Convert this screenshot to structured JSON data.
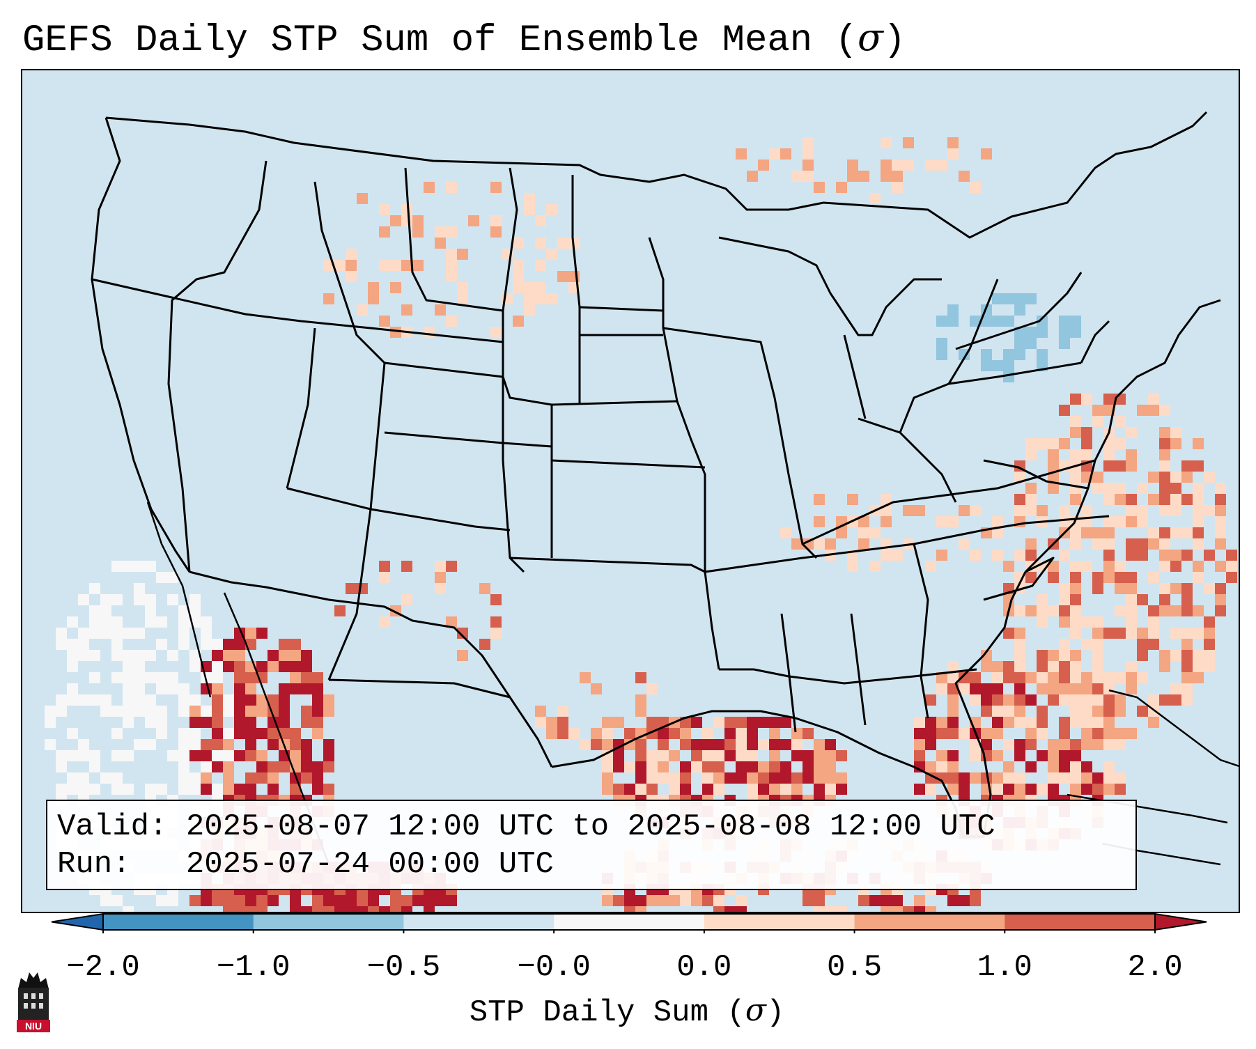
{
  "title": {
    "prefix": "GEFS Daily STP Sum of Ensemble Mean (",
    "symbol": "σ",
    "suffix": ")"
  },
  "info": {
    "valid_label": "Valid:",
    "valid_value": "2025-08-07 12:00 UTC to 2025-08-08 12:00 UTC",
    "run_label": "Run:",
    "run_value": "2025-07-24 00:00 UTC"
  },
  "colorbar": {
    "ticks": [
      "−2.0",
      "−1.0",
      "−0.5",
      "−0.0",
      "0.0",
      "0.5",
      "1.0",
      "2.0"
    ],
    "bins": [
      {
        "range": "< -2.0",
        "color": "#2166ac"
      },
      {
        "range": "-2.0 to -1.0",
        "color": "#4393c3"
      },
      {
        "range": "-1.0 to -0.5",
        "color": "#92c5de"
      },
      {
        "range": "-0.5 to -0.0",
        "color": "#d1e5f0"
      },
      {
        "range": "-0.0 to 0.0",
        "color": "#f7f7f7"
      },
      {
        "range": "0.0 to 0.5",
        "color": "#fddbc7"
      },
      {
        "range": "0.5 to 1.0",
        "color": "#f4a582"
      },
      {
        "range": "1.0 to 2.0",
        "color": "#d6604d"
      },
      {
        "range": "> 2.0",
        "color": "#b2182b"
      }
    ],
    "label_prefix": "STP Daily Sum (",
    "label_symbol": "σ",
    "label_suffix": ")"
  },
  "logo": {
    "text": "NIU"
  },
  "colors": {
    "background": "#d1e5f0",
    "border": "#000000"
  }
}
